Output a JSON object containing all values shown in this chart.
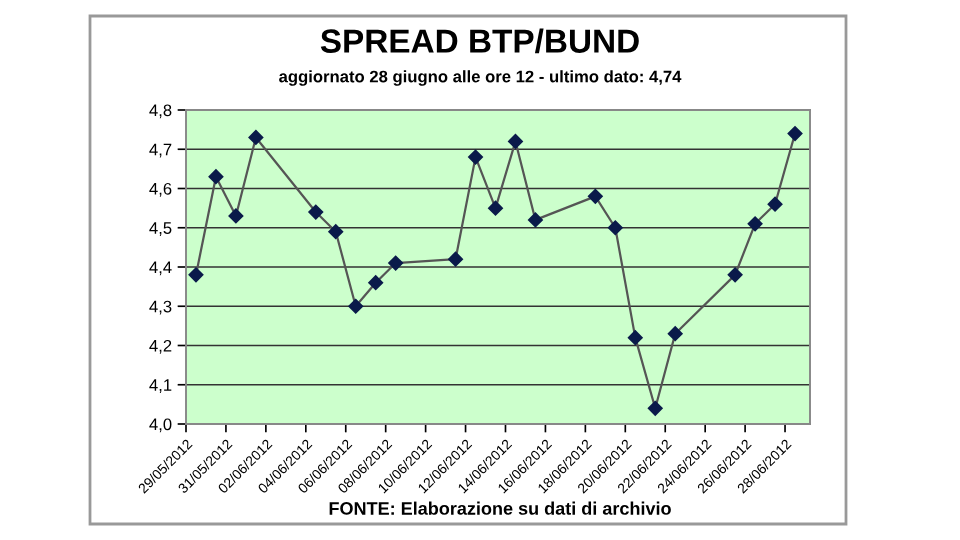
{
  "chart_data": {
    "type": "line",
    "title": "SPREAD BTP/BUND",
    "subtitle": "aggiornato 28 giugno alle ore 12 - ultimo dato: 4,74",
    "annotations": [
      "FONTE: Elaborazione su dati di archivio"
    ],
    "x": [
      "2012-05-29T12:00",
      "2012-05-30T12:00",
      "2012-05-31T12:00",
      "2012-06-01T12:00",
      "2012-06-04T12:00",
      "2012-06-05T12:00",
      "2012-06-06T12:00",
      "2012-06-07T12:00",
      "2012-06-08T12:00",
      "2012-06-11T12:00",
      "2012-06-12T12:00",
      "2012-06-13T12:00",
      "2012-06-14T12:00",
      "2012-06-15T12:00",
      "2012-06-18T12:00",
      "2012-06-19T12:00",
      "2012-06-20T12:00",
      "2012-06-21T12:00",
      "2012-06-22T12:00",
      "2012-06-25T12:00",
      "2012-06-26T12:00",
      "2012-06-27T12:00",
      "2012-06-28T12:00"
    ],
    "series": [
      {
        "color": "#0a1a4a",
        "values": [
          4.38,
          4.63,
          4.53,
          4.73,
          4.54,
          4.49,
          4.3,
          4.36,
          4.41,
          4.42,
          4.68,
          4.55,
          4.72,
          4.52,
          4.58,
          4.5,
          4.22,
          4.04,
          4.23,
          4.38,
          4.51,
          4.56,
          4.74
        ]
      }
    ],
    "marker": "diamond",
    "line_style": "solid",
    "grid": "y",
    "legend": false,
    "xlim": [
      "2012-05-29",
      "2012-06-29T06:00"
    ],
    "xticks": [
      {
        "value": "2012-05-29",
        "label": "29/05/2012"
      },
      {
        "value": "2012-05-31",
        "label": "31/05/2012"
      },
      {
        "value": "2012-06-02",
        "label": "02/06/2012"
      },
      {
        "value": "2012-06-04",
        "label": "04/06/2012"
      },
      {
        "value": "2012-06-06",
        "label": "06/06/2012"
      },
      {
        "value": "2012-06-08",
        "label": "08/06/2012"
      },
      {
        "value": "2012-06-10",
        "label": "10/06/2012"
      },
      {
        "value": "2012-06-12",
        "label": "12/06/2012"
      },
      {
        "value": "2012-06-14",
        "label": "14/06/2012"
      },
      {
        "value": "2012-06-16",
        "label": "16/06/2012"
      },
      {
        "value": "2012-06-18",
        "label": "18/06/2012"
      },
      {
        "value": "2012-06-20",
        "label": "20/06/2012"
      },
      {
        "value": "2012-06-22",
        "label": "22/06/2012"
      },
      {
        "value": "2012-06-24",
        "label": "24/06/2012"
      },
      {
        "value": "2012-06-26",
        "label": "26/06/2012"
      },
      {
        "value": "2012-06-28",
        "label": "28/06/2012"
      }
    ],
    "ylim": [
      4.0,
      4.8
    ],
    "yticks": [
      {
        "value": 4.0,
        "label": "4,0"
      },
      {
        "value": 4.1,
        "label": "4,1"
      },
      {
        "value": 4.2,
        "label": "4,2"
      },
      {
        "value": 4.3,
        "label": "4,3"
      },
      {
        "value": 4.4,
        "label": "4,4"
      },
      {
        "value": 4.5,
        "label": "4,5"
      },
      {
        "value": 4.6,
        "label": "4,6"
      },
      {
        "value": 4.7,
        "label": "4,7"
      },
      {
        "value": 4.8,
        "label": "4,8"
      }
    ]
  }
}
